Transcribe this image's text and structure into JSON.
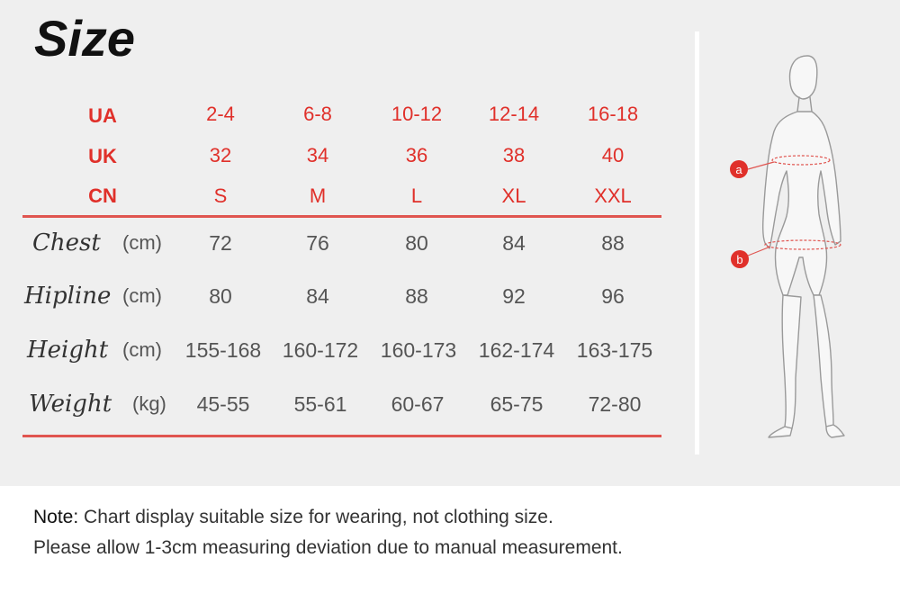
{
  "title": "Size",
  "columns": [
    "2-4",
    "6-8",
    "10-12",
    "12-14",
    "16-18"
  ],
  "header_rows": [
    {
      "label": "UA",
      "values": [
        "2-4",
        "6-8",
        "10-12",
        "12-14",
        "16-18"
      ]
    },
    {
      "label": "UK",
      "values": [
        "32",
        "34",
        "36",
        "38",
        "40"
      ]
    },
    {
      "label": "CN",
      "values": [
        "S",
        "M",
        "L",
        "XL",
        "XXL"
      ]
    }
  ],
  "measure_rows": [
    {
      "label": "Chest",
      "unit": "(cm)",
      "values": [
        "72",
        "76",
        "80",
        "84",
        "88"
      ]
    },
    {
      "label": "Hipline",
      "unit": "(cm)",
      "values": [
        "80",
        "84",
        "88",
        "92",
        "96"
      ]
    },
    {
      "label": "Height",
      "unit": "(cm)",
      "values": [
        "155-168",
        "160-172",
        "160-173",
        "162-174",
        "163-175"
      ]
    },
    {
      "label": "Weight",
      "unit": "(kg)",
      "values": [
        "45-55",
        "55-61",
        "60-67",
        "65-75",
        "72-80"
      ]
    }
  ],
  "figure": {
    "marker_a": "a",
    "marker_b": "b"
  },
  "note": {
    "prefix": "Note:",
    "line1": " Chart display suitable size for wearing, not clothing size.",
    "line2": "Please allow 1-3cm measuring deviation due to manual measurement."
  },
  "colors": {
    "accent": "#e0302a",
    "rule": "#e05550",
    "panel": "#efefef"
  }
}
